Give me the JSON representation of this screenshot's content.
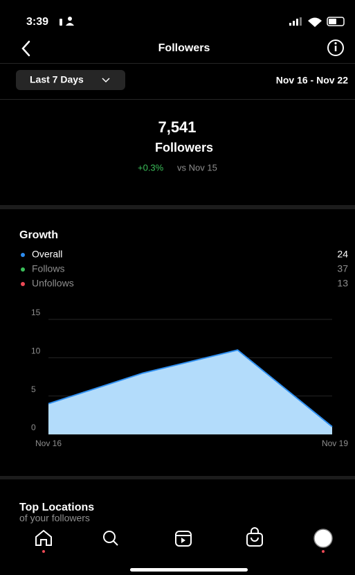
{
  "status": {
    "time": "3:39"
  },
  "header": {
    "title": "Followers"
  },
  "filter": {
    "range_label": "Last 7 Days",
    "dates": "Nov 16 - Nov 22"
  },
  "summary": {
    "count": "7,541",
    "label": "Followers",
    "change": "+0.3%",
    "comparison": "vs Nov 15"
  },
  "growth": {
    "title": "Growth",
    "legend": [
      {
        "name": "Overall",
        "color": "#2d8cf0",
        "value": 24
      },
      {
        "name": "Follows",
        "color": "#3bbf5a",
        "value": 37
      },
      {
        "name": "Unfollows",
        "color": "#ed4956",
        "value": 13
      }
    ]
  },
  "chart_data": {
    "type": "area",
    "categories": [
      "Nov 16",
      null,
      null,
      "Nov 19"
    ],
    "values": [
      4,
      8,
      11,
      1
    ],
    "color": "#b3dcfb",
    "line_color": "#2f8ff0",
    "ylim": [
      0,
      15
    ],
    "yticks": [
      0,
      5,
      10,
      15
    ],
    "grid": true
  },
  "locations": {
    "title": "Top Locations",
    "subtitle": "of your followers"
  }
}
